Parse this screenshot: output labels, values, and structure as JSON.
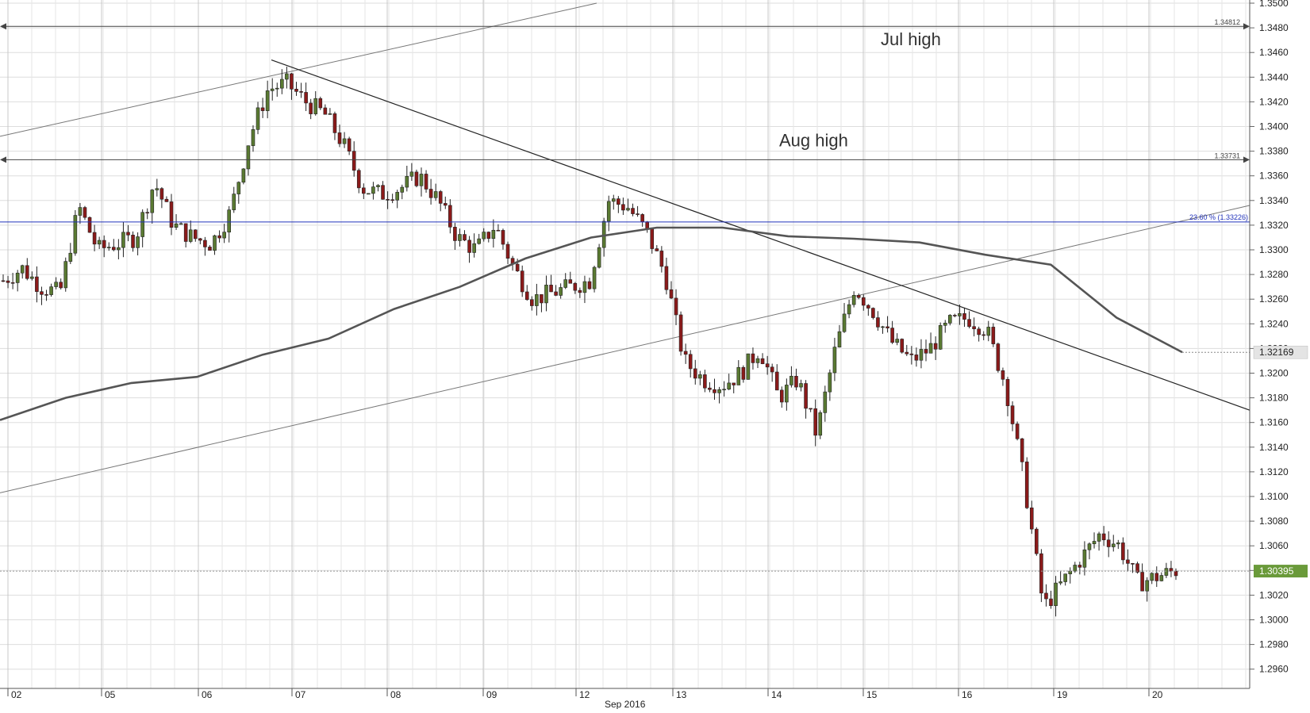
{
  "chart_data": {
    "type": "candlestick",
    "instrument_timeframe": "intraday",
    "x_month_label": "Sep 2016",
    "x_day_labels": [
      "02",
      "05",
      "06",
      "07",
      "08",
      "09",
      "12",
      "13",
      "14",
      "15",
      "16",
      "19",
      "20"
    ],
    "y_range": [
      1.294,
      1.35
    ],
    "y_ticks": [
      "1.3500",
      "1.3480",
      "1.3460",
      "1.3440",
      "1.3420",
      "1.3400",
      "1.3380",
      "1.3360",
      "1.3340",
      "1.3320",
      "1.3300",
      "1.3280",
      "1.3260",
      "1.3240",
      "1.3220",
      "1.3200",
      "1.3180",
      "1.3160",
      "1.3140",
      "1.3120",
      "1.3100",
      "1.3080",
      "1.3060",
      "1.3040",
      "1.3020",
      "1.3000",
      "1.2980",
      "1.2960"
    ],
    "current_price_label": "1.30395",
    "current_price": 1.30395,
    "ma_last_label": "1.32169",
    "ma_last_value": 1.32169,
    "horizontal_levels": [
      {
        "label": "1.34812",
        "value": 1.34812,
        "annotation": "Jul high"
      },
      {
        "label": "1.33731",
        "value": 1.33731,
        "annotation": "Aug high"
      }
    ],
    "fib_level": {
      "label": "23.60 % (1.33226)",
      "value": 1.33226,
      "color": "#2233bb"
    },
    "series_anchor_closes": [
      1.3275,
      1.3285,
      1.327,
      1.3265,
      1.3335,
      1.33,
      1.3305,
      1.331,
      1.3355,
      1.332,
      1.331,
      1.3305,
      1.333,
      1.339,
      1.343,
      1.3435,
      1.342,
      1.341,
      1.3385,
      1.335,
      1.3345,
      1.335,
      1.336,
      1.334,
      1.331,
      1.33,
      1.332,
      1.3285,
      1.326,
      1.3265,
      1.327,
      1.3275,
      1.334,
      1.3335,
      1.3315,
      1.328,
      1.321,
      1.3195,
      1.319,
      1.32,
      1.322,
      1.318,
      1.3195,
      1.315,
      1.322,
      1.327,
      1.325,
      1.3225,
      1.321,
      1.322,
      1.324,
      1.3245,
      1.3235,
      1.319,
      1.311,
      1.301,
      1.303,
      1.305,
      1.307,
      1.306,
      1.303,
      1.3035,
      1.304
    ],
    "moving_average_anchors": [
      1.3162,
      1.318,
      1.3192,
      1.3197,
      1.3215,
      1.3228,
      1.3252,
      1.327,
      1.3293,
      1.331,
      1.3318,
      1.3318,
      1.3311,
      1.3309,
      1.3306,
      1.3296,
      1.3288,
      1.3245,
      1.3217
    ],
    "colors": {
      "bull": "#5a7a32",
      "bear": "#8b1a1a",
      "current_price_bg": "#6a9a3a",
      "grid": "#dddddd",
      "line": "#333333"
    }
  }
}
